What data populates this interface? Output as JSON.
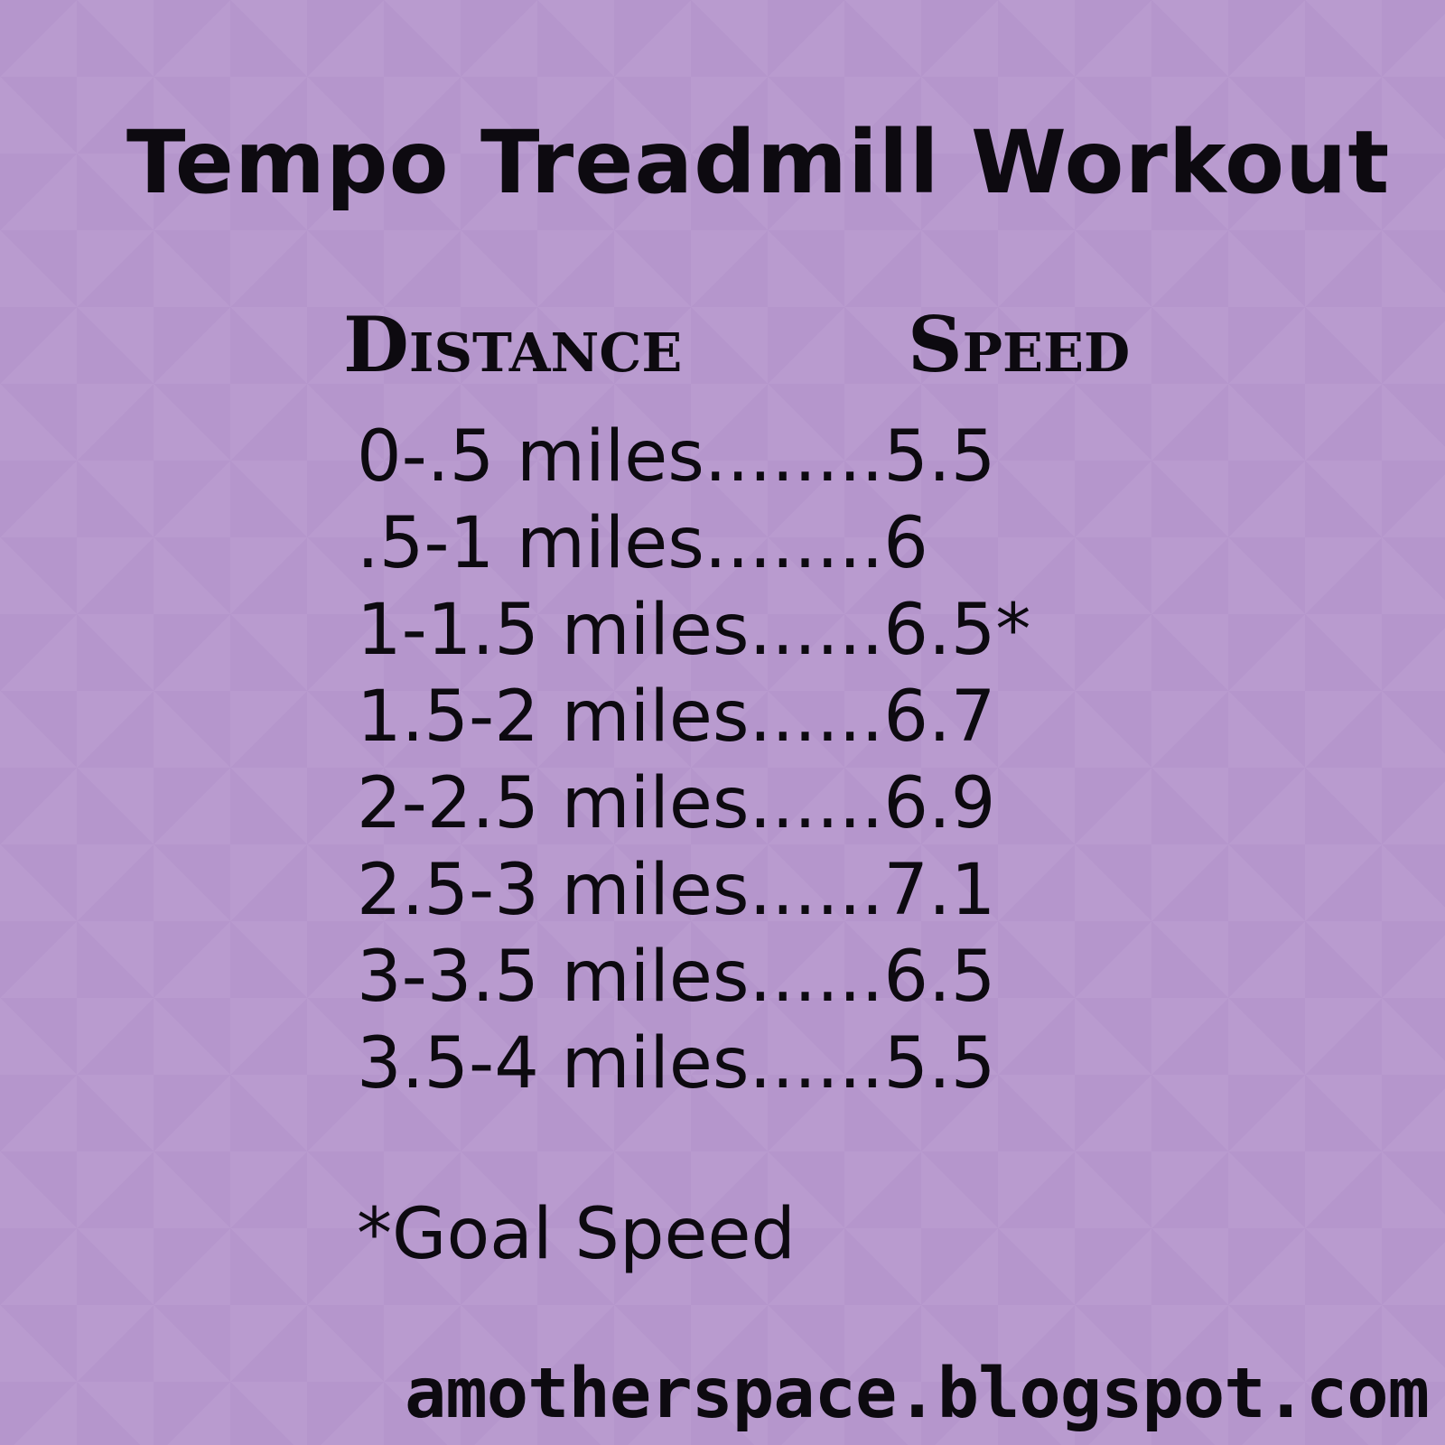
{
  "title": "Tempo Treadmill Workout",
  "headers": {
    "distance": "Distance",
    "speed": "Speed"
  },
  "rows": [
    {
      "text": "0-.5 miles........5.5"
    },
    {
      "text": ".5-1 miles........6"
    },
    {
      "text": "1-1.5 miles......6.5*"
    },
    {
      "text": "1.5-2 miles......6.7"
    },
    {
      "text": "2-2.5 miles......6.9"
    },
    {
      "text": "2.5-3 miles......7.1"
    },
    {
      "text": "3-3.5 miles......6.5"
    },
    {
      "text": "3.5-4 miles......5.5"
    }
  ],
  "footnote": "*Goal Speed",
  "site": "amotherspace.blogspot.com",
  "colors": {
    "background": "#b596cc",
    "text": "#0d0a10"
  }
}
